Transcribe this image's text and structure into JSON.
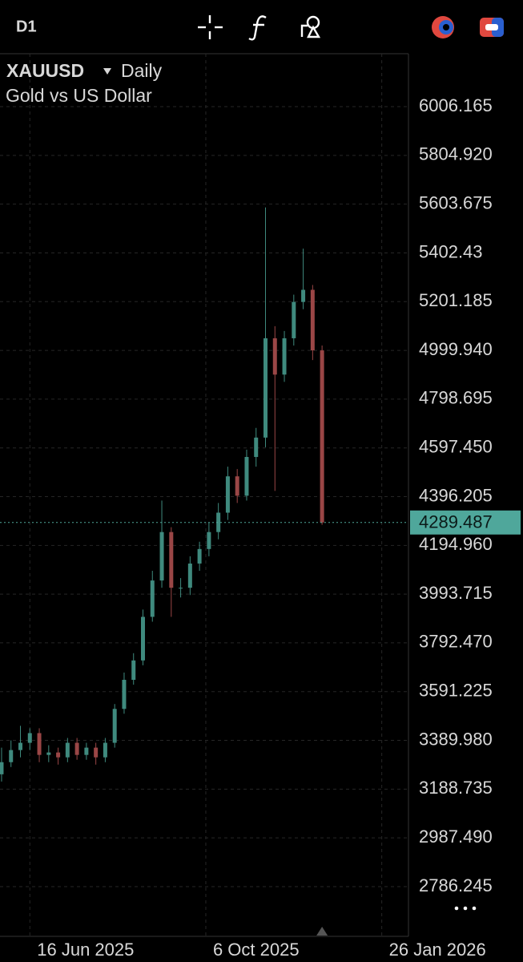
{
  "toolbar": {
    "timeframe": "D1"
  },
  "chart_data": {
    "type": "candlestick",
    "title": "XAUUSD",
    "interval": "Daily",
    "subtitle": "Gold vs US Dollar",
    "x": [
      "2025-05-29",
      "2025-06-04",
      "2025-06-10",
      "2025-06-16",
      "2025-06-22",
      "2025-06-28",
      "2025-07-04",
      "2025-07-10",
      "2025-07-16",
      "2025-07-22",
      "2025-07-28",
      "2025-08-03",
      "2025-08-09",
      "2025-08-15",
      "2025-08-21",
      "2025-08-27",
      "2025-09-02",
      "2025-09-08",
      "2025-09-14",
      "2025-09-20",
      "2025-09-26",
      "2025-10-02",
      "2025-10-08",
      "2025-10-14",
      "2025-10-20",
      "2025-10-26",
      "2025-11-01",
      "2025-11-07",
      "2025-11-13",
      "2025-11-19",
      "2025-11-25",
      "2025-12-01",
      "2025-12-07",
      "2025-12-13",
      "2025-12-19"
    ],
    "open": [
      3250,
      3300,
      3350,
      3380,
      3420,
      3330,
      3340,
      3320,
      3380,
      3330,
      3360,
      3320,
      3380,
      3520,
      3640,
      3720,
      3900,
      4050,
      4250,
      4020,
      4020,
      4120,
      4180,
      4250,
      4330,
      4480,
      4400,
      4560,
      4640,
      5050,
      4900,
      5050,
      5200,
      5250,
      5000
    ],
    "high": [
      3360,
      3390,
      3450,
      3440,
      3440,
      3370,
      3360,
      3400,
      3400,
      3380,
      3380,
      3400,
      3540,
      3670,
      3750,
      3930,
      4090,
      4380,
      4270,
      4060,
      4150,
      4210,
      4290,
      4370,
      4520,
      4510,
      4590,
      4680,
      5590,
      5100,
      5080,
      5230,
      5420,
      5270,
      5020
    ],
    "low": [
      3220,
      3280,
      3320,
      3350,
      3300,
      3300,
      3290,
      3300,
      3310,
      3310,
      3290,
      3300,
      3360,
      3500,
      3620,
      3700,
      3880,
      4020,
      3900,
      3980,
      3990,
      4090,
      4150,
      4220,
      4300,
      4370,
      4380,
      4520,
      4600,
      4420,
      4870,
      5020,
      5170,
      4960,
      4280
    ],
    "close": [
      3300,
      3350,
      3380,
      3420,
      3330,
      3340,
      3320,
      3380,
      3330,
      3360,
      3320,
      3380,
      3520,
      3640,
      3720,
      3900,
      4050,
      4250,
      4020,
      4020,
      4120,
      4180,
      4250,
      4330,
      4480,
      4400,
      4560,
      4640,
      5050,
      4900,
      5050,
      5200,
      5250,
      5000,
      4289.487
    ],
    "up_color": "#3f8a7e",
    "down_color": "#9a4646",
    "last_price": 4289.487,
    "last_price_color": "#4fa79b",
    "xlim": [
      "2025-05-28",
      "2026-02-12"
    ],
    "xticks": [
      {
        "value": "2025-06-16",
        "label": "16 Jun 2025"
      },
      {
        "value": "2025-10-06",
        "label": "6 Oct 2025"
      },
      {
        "value": "2026-01-26",
        "label": "26 Jan 2026"
      }
    ],
    "ylim": [
      2581,
      6224.7
    ],
    "yticks": [
      2786.245,
      {
        "value": 2987.49,
        "label": "2987.490"
      },
      3188.735,
      {
        "value": 3389.98,
        "label": "3389.980"
      },
      3591.225,
      {
        "value": 3792.47,
        "label": "3792.470"
      },
      3993.715,
      {
        "value": 4194.96,
        "label": "4194.960"
      },
      4396.205,
      {
        "value": 4597.45,
        "label": "4597.450"
      },
      4798.695,
      {
        "value": 4999.94,
        "label": "4999.940"
      },
      5201.185,
      5402.43,
      5603.675,
      {
        "value": 5804.92,
        "label": "5804.920"
      },
      6006.165
    ],
    "grid": true
  }
}
